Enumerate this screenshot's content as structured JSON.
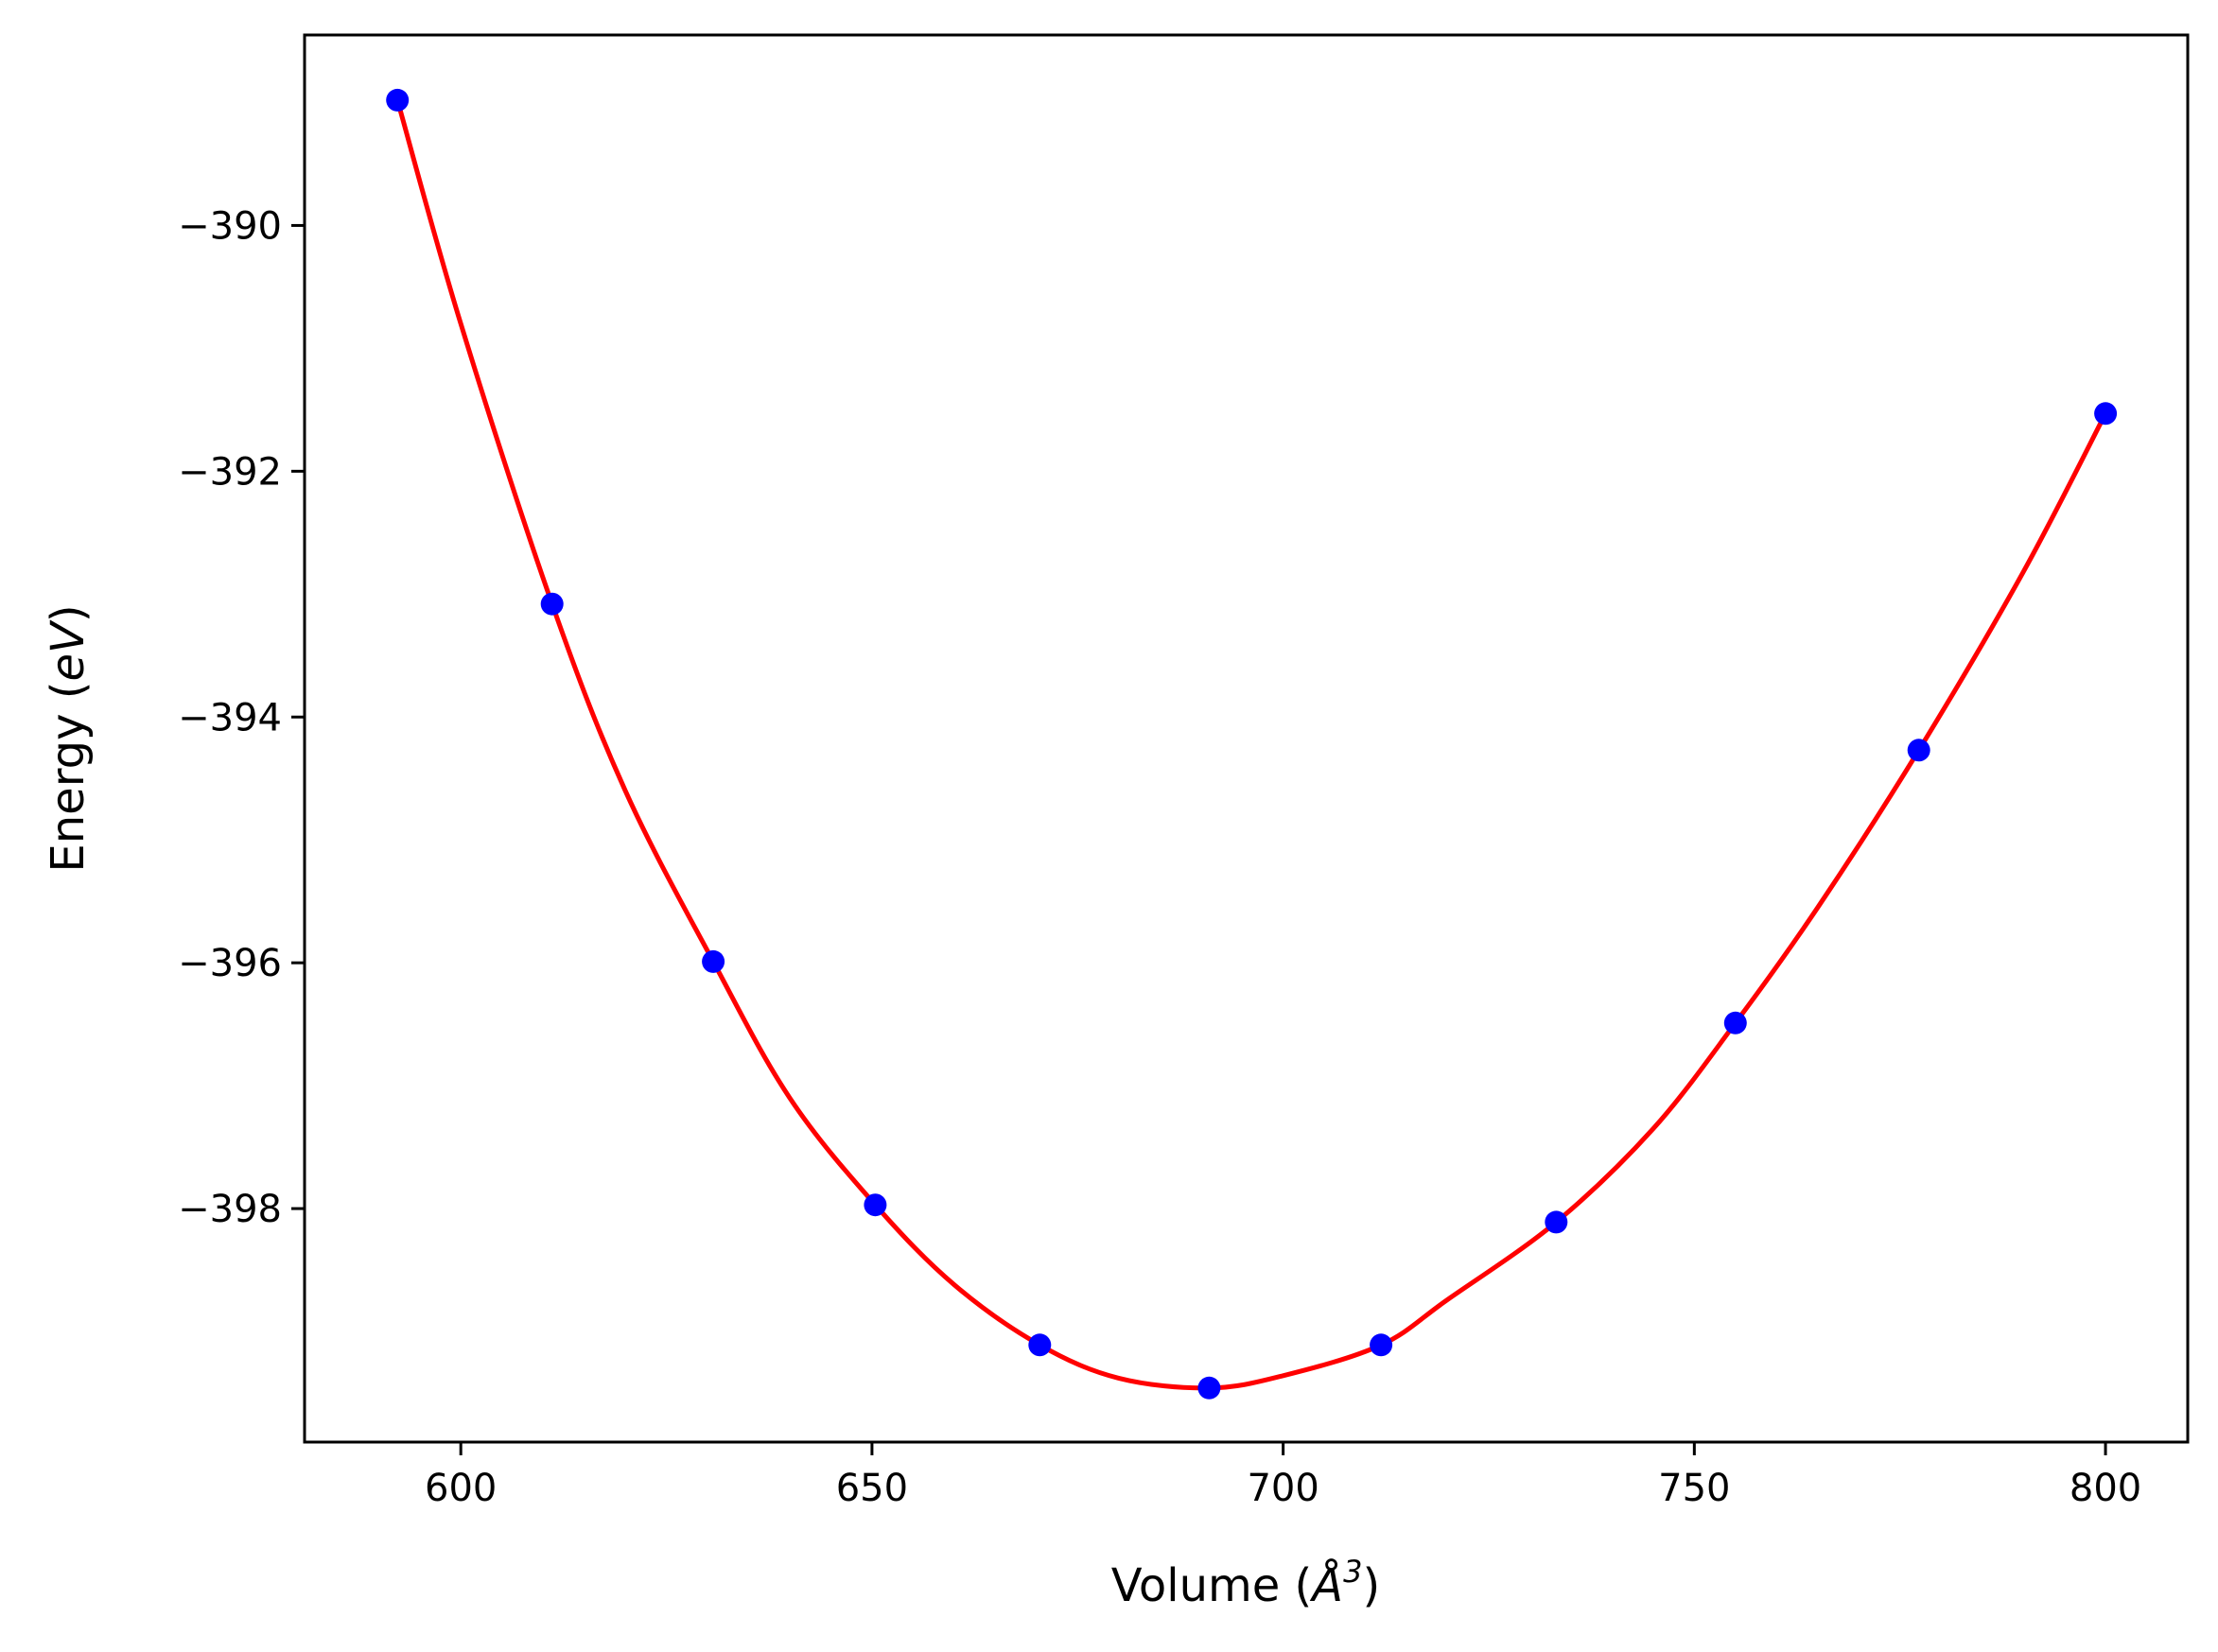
{
  "chart_data": {
    "type": "scatter",
    "xlabel_prefix": "Volume (",
    "xlabel_unit": "Å",
    "xlabel_exp": "3",
    "xlabel_suffix": ")",
    "ylabel_prefix": "Energy (",
    "ylabel_unit": "eV",
    "ylabel_suffix": ")",
    "xlim": [
      581,
      810
    ],
    "ylim": [
      -399.9,
      -388.45
    ],
    "xticks": [
      600,
      650,
      700,
      750,
      800
    ],
    "xtick_labels": [
      "600",
      "650",
      "700",
      "750",
      "800"
    ],
    "yticks": [
      -390,
      -392,
      -394,
      -396,
      -398
    ],
    "ytick_labels": [
      "−390",
      "−392",
      "−394",
      "−396",
      "−398"
    ],
    "grid": false,
    "series": [
      {
        "kind": "points",
        "color": "#0000ff",
        "x": [
          592.3,
          611.1,
          630.7,
          650.4,
          670.4,
          691.0,
          711.9,
          733.2,
          755.0,
          777.3,
          800.0
        ],
        "y": [
          -388.98,
          -393.08,
          -395.99,
          -397.97,
          -399.11,
          -399.46,
          -399.11,
          -398.11,
          -396.49,
          -394.27,
          -391.53
        ]
      },
      {
        "kind": "fit-curve",
        "color": "#ff0000",
        "x": [
          592.3,
          600,
          611.1,
          620,
          630.7,
          640,
          650.4,
          660,
          670.4,
          680,
          691.0,
          700,
          711.9,
          720,
          733.2,
          745,
          755.0,
          765,
          777.3,
          790,
          800.0
        ],
        "y": [
          -388.98,
          -390.8,
          -393.08,
          -394.6,
          -395.99,
          -397.1,
          -397.97,
          -398.62,
          -399.11,
          -399.38,
          -399.46,
          -399.36,
          -399.11,
          -398.74,
          -398.11,
          -397.35,
          -396.49,
          -395.55,
          -394.27,
          -392.82,
          -391.53
        ]
      }
    ]
  }
}
